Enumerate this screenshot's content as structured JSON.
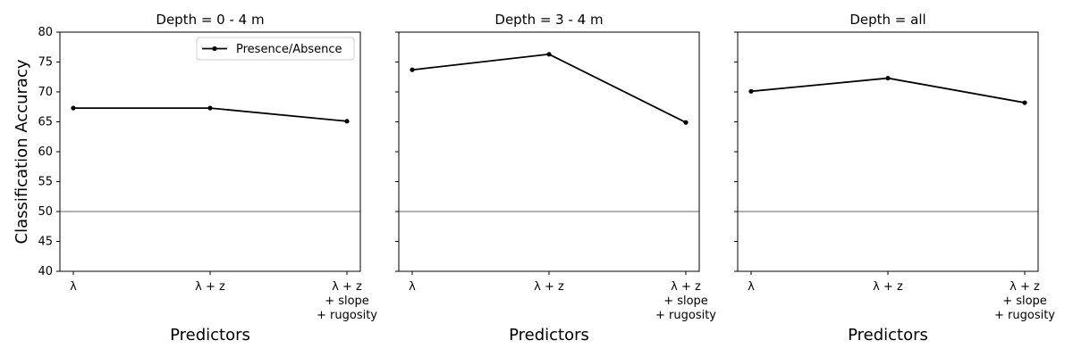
{
  "chart_data": {
    "type": "line",
    "ylabel": "Classification Accuracy",
    "ylim": [
      40,
      80
    ],
    "yticks": [
      40,
      45,
      50,
      55,
      60,
      65,
      70,
      75,
      80
    ],
    "reference_line": 50,
    "reference_color": "#808080",
    "line_color": "#000000",
    "legend": {
      "label": "Presence/Absence",
      "placement": "top-right"
    },
    "categories": [
      [
        "λ"
      ],
      [
        "λ + z"
      ],
      [
        "λ + z",
        "+ slope",
        "+ rugosity"
      ]
    ],
    "panels": [
      {
        "title": "Depth = 0 - 4 m",
        "xlabel": "Predictors",
        "series": [
          {
            "name": "Presence/Absence",
            "values": [
              67.3,
              67.3,
              65.1
            ]
          }
        ]
      },
      {
        "title": "Depth = 3 - 4 m",
        "xlabel": "Predictors",
        "series": [
          {
            "name": "Presence/Absence",
            "values": [
              73.7,
              76.3,
              64.9
            ]
          }
        ]
      },
      {
        "title": "Depth = all",
        "xlabel": "Predictors",
        "series": [
          {
            "name": "Presence/Absence",
            "values": [
              70.1,
              72.3,
              68.2
            ]
          }
        ]
      }
    ]
  }
}
